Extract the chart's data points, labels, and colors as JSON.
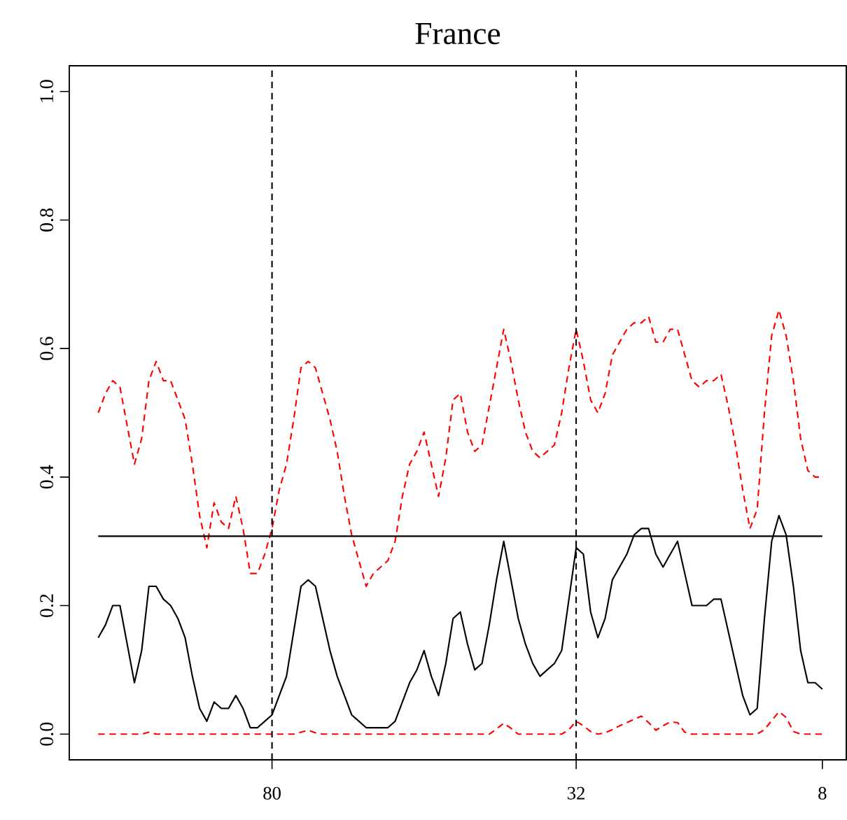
{
  "chart_data": {
    "type": "line",
    "title": "France",
    "categories": [
      null,
      null,
      null,
      null,
      null,
      null,
      null,
      null,
      null,
      null,
      null,
      null,
      null,
      null,
      null,
      null,
      null,
      null,
      null,
      null,
      null,
      null,
      null,
      null,
      "80",
      null,
      null,
      null,
      null,
      null,
      null,
      null,
      null,
      null,
      null,
      null,
      null,
      null,
      null,
      null,
      null,
      null,
      null,
      null,
      null,
      null,
      null,
      null,
      null,
      null,
      null,
      null,
      null,
      null,
      null,
      null,
      null,
      null,
      null,
      null,
      null,
      null,
      null,
      null,
      null,
      null,
      "32",
      null,
      null,
      null,
      null,
      null,
      null,
      null,
      null,
      null,
      null,
      null,
      null,
      null,
      null,
      null,
      null,
      null,
      null,
      null,
      null,
      null,
      null,
      null,
      null,
      null,
      null,
      null,
      null,
      null,
      null,
      null,
      null,
      null,
      "8"
    ],
    "ylim": [
      -0.04,
      1.04
    ],
    "yticks": [
      {
        "value": 0,
        "label": "0.0"
      },
      {
        "value": 0.2,
        "label": "0.2"
      },
      {
        "value": 0.4,
        "label": "0.4"
      },
      {
        "value": 0.6,
        "label": "0.6"
      },
      {
        "value": 0.8,
        "label": "0.8"
      },
      {
        "value": 1.0,
        "label": "1.0"
      }
    ],
    "series": [
      {
        "color": "#ff0000",
        "line_style": "dashed",
        "values": [
          0.5,
          0.53,
          0.55,
          0.54,
          0.48,
          0.42,
          0.46,
          0.55,
          0.58,
          0.55,
          0.55,
          0.52,
          0.49,
          0.42,
          0.34,
          0.29,
          0.36,
          0.33,
          0.32,
          0.37,
          0.32,
          0.25,
          0.25,
          0.28,
          0.32,
          0.38,
          0.42,
          0.49,
          0.57,
          0.58,
          0.57,
          0.53,
          0.49,
          0.44,
          0.37,
          0.31,
          0.27,
          0.23,
          0.25,
          0.26,
          0.27,
          0.3,
          0.37,
          0.42,
          0.44,
          0.47,
          0.42,
          0.37,
          0.43,
          0.52,
          0.53,
          0.47,
          0.44,
          0.45,
          0.51,
          0.57,
          0.63,
          0.58,
          0.52,
          0.47,
          0.44,
          0.43,
          0.44,
          0.45,
          0.5,
          0.57,
          0.63,
          0.58,
          0.52,
          0.5,
          0.53,
          0.59,
          0.61,
          0.63,
          0.64,
          0.64,
          0.65,
          0.61,
          0.61,
          0.63,
          0.63,
          0.59,
          0.55,
          0.54,
          0.55,
          0.55,
          0.56,
          0.51,
          0.45,
          0.38,
          0.32,
          0.35,
          0.5,
          0.62,
          0.66,
          0.62,
          0.55,
          0.46,
          0.41,
          0.4,
          0.4
        ]
      },
      {
        "color": "#000000",
        "line_style": "solid",
        "values": [
          0.15,
          0.17,
          0.2,
          0.2,
          0.14,
          0.08,
          0.13,
          0.23,
          0.23,
          0.21,
          0.2,
          0.18,
          0.15,
          0.09,
          0.04,
          0.02,
          0.05,
          0.04,
          0.04,
          0.06,
          0.04,
          0.01,
          0.01,
          0.02,
          0.03,
          0.06,
          0.09,
          0.16,
          0.23,
          0.24,
          0.23,
          0.18,
          0.13,
          0.09,
          0.06,
          0.03,
          0.02,
          0.01,
          0.01,
          0.01,
          0.01,
          0.02,
          0.05,
          0.08,
          0.1,
          0.13,
          0.09,
          0.06,
          0.11,
          0.18,
          0.19,
          0.14,
          0.1,
          0.11,
          0.17,
          0.24,
          0.3,
          0.24,
          0.18,
          0.14,
          0.11,
          0.09,
          0.1,
          0.11,
          0.13,
          0.21,
          0.29,
          0.28,
          0.19,
          0.15,
          0.18,
          0.24,
          0.26,
          0.28,
          0.31,
          0.32,
          0.32,
          0.28,
          0.26,
          0.28,
          0.3,
          0.25,
          0.2,
          0.2,
          0.2,
          0.21,
          0.21,
          0.16,
          0.11,
          0.06,
          0.03,
          0.04,
          0.18,
          0.3,
          0.34,
          0.31,
          0.23,
          0.13,
          0.08,
          0.08,
          0.07
        ]
      },
      {
        "color": "#ff0000",
        "line_style": "dashed",
        "values": [
          0,
          0,
          0,
          0,
          0,
          0,
          0,
          0.003,
          0,
          0,
          0,
          0,
          0,
          0,
          0,
          0,
          0,
          0,
          0,
          0,
          0,
          0,
          0,
          0,
          0,
          0,
          0,
          0,
          0.003,
          0.006,
          0.002,
          0,
          0,
          0,
          0,
          0,
          0,
          0,
          0,
          0,
          0,
          0,
          0,
          0,
          0,
          0,
          0,
          0,
          0,
          0,
          0,
          0,
          0,
          0,
          0,
          0.008,
          0.017,
          0.009,
          0,
          0,
          0,
          0,
          0,
          0,
          0,
          0.007,
          0.02,
          0.013,
          0.004,
          0,
          0.002,
          0.007,
          0.013,
          0.018,
          0.023,
          0.028,
          0.018,
          0.006,
          0.013,
          0.019,
          0.018,
          0.003,
          0,
          0,
          0,
          0,
          0,
          0,
          0,
          0,
          0,
          0,
          0.007,
          0.021,
          0.035,
          0.026,
          0.004,
          0,
          0,
          0,
          0
        ]
      }
    ],
    "ref_lines": [
      {
        "axis": "y",
        "value": 0.308,
        "color": "#000000",
        "line_style": "solid"
      },
      {
        "axis": "x",
        "value": "80",
        "color": "#000000",
        "line_style": "dashed"
      },
      {
        "axis": "x",
        "value": "32",
        "color": "#000000",
        "line_style": "dashed"
      }
    ]
  }
}
